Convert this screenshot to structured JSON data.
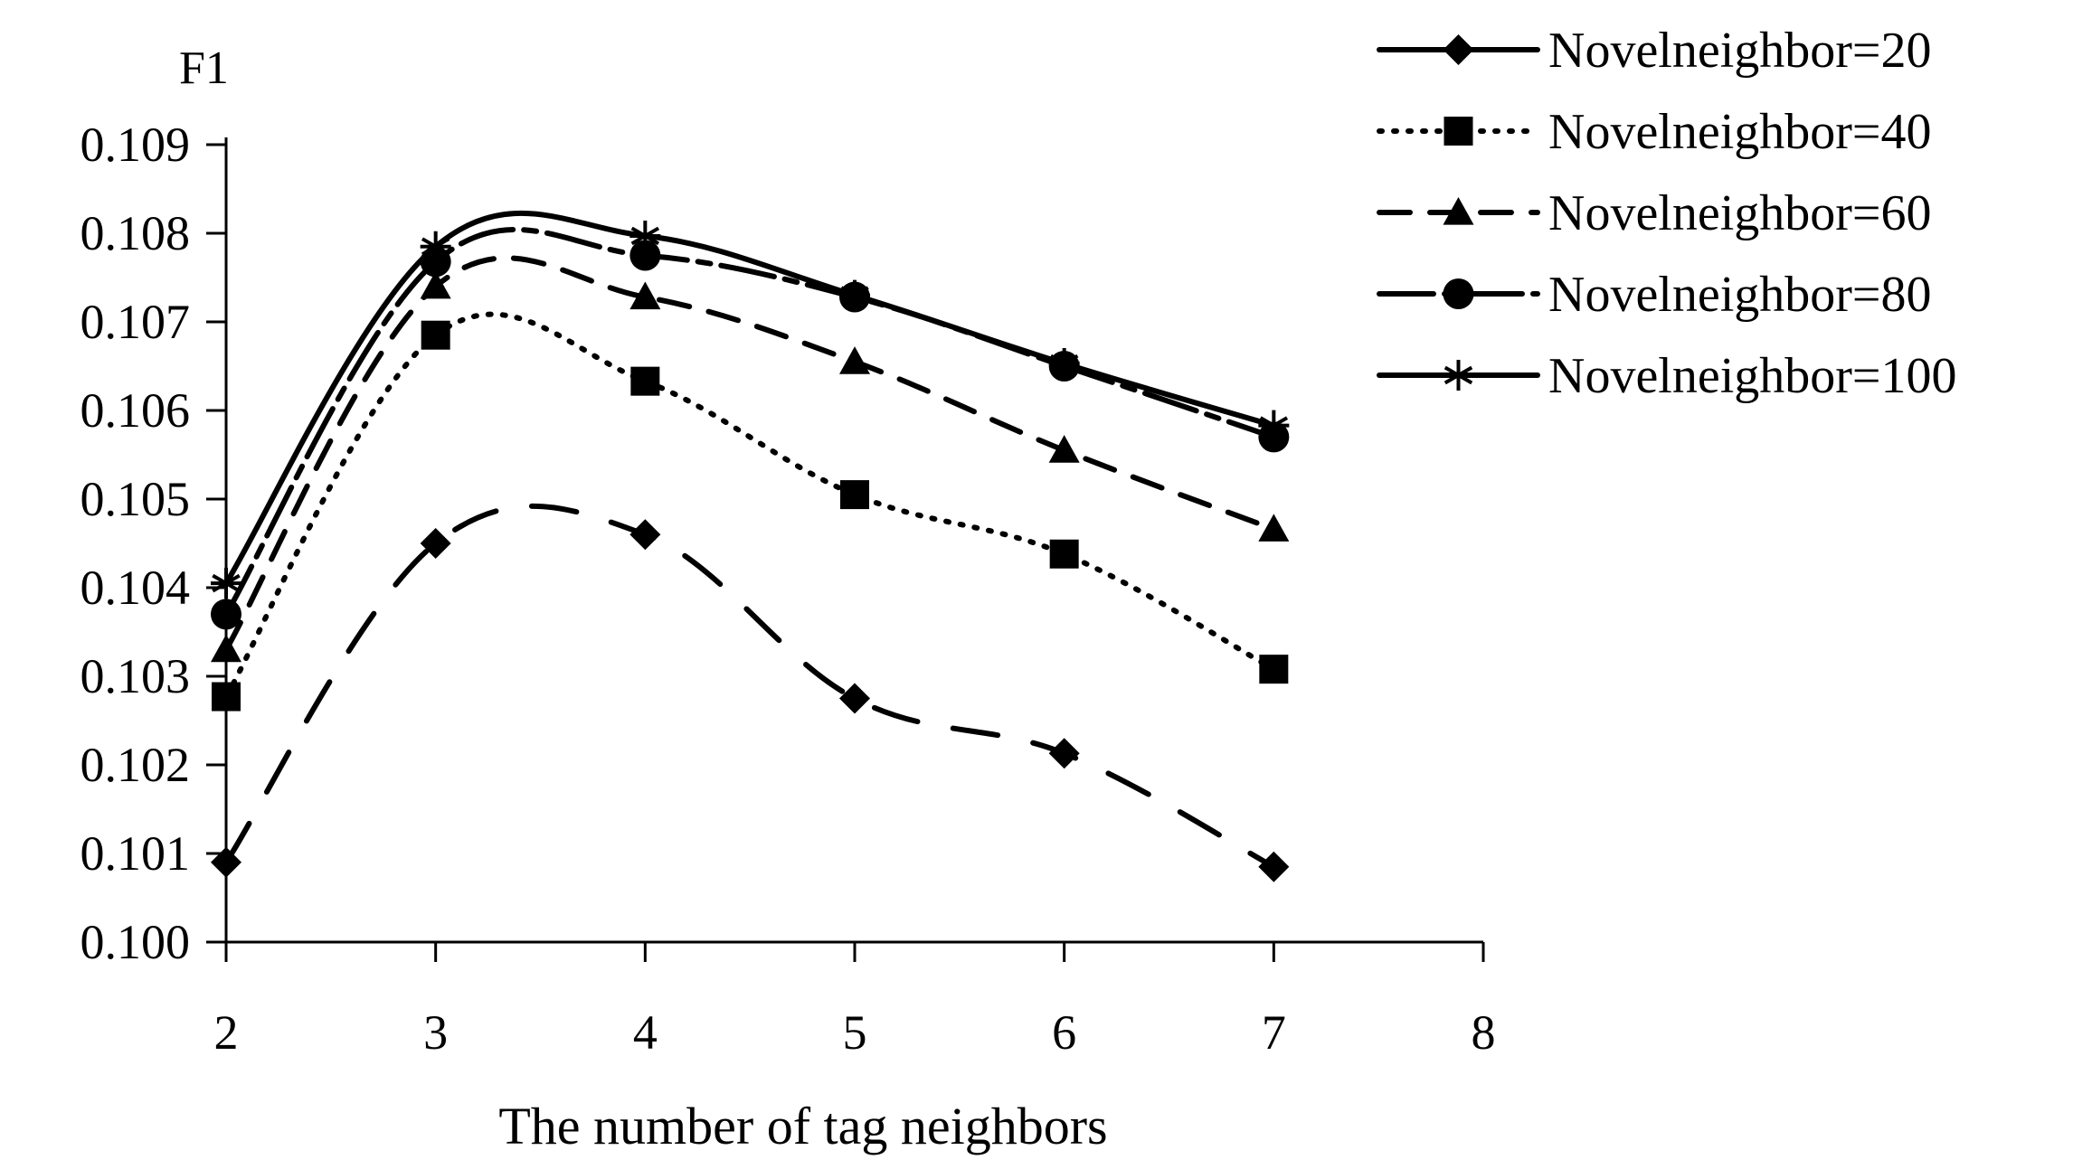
{
  "chart_data": {
    "type": "line",
    "title": "",
    "ylabel": "F1",
    "xlabel": "The number of tag neighbors",
    "xlim": [
      2,
      8
    ],
    "ylim": [
      0.1,
      0.109
    ],
    "x_ticks": [
      "2",
      "3",
      "4",
      "5",
      "6",
      "7",
      "8"
    ],
    "y_ticks": [
      "0.100",
      "0.101",
      "0.102",
      "0.103",
      "0.104",
      "0.105",
      "0.106",
      "0.107",
      "0.108",
      "0.109"
    ],
    "grid": false,
    "legend_position": "top-right",
    "x": [
      2,
      3,
      4,
      5,
      6,
      7
    ],
    "series": [
      {
        "name": "Novelneighbor=20",
        "marker": "diamond",
        "line_style": "long-dash",
        "values": [
          0.1009,
          0.1045,
          0.1046,
          0.10275,
          0.10213,
          0.10085
        ]
      },
      {
        "name": "Novelneighbor=40",
        "marker": "square",
        "line_style": "dotted",
        "values": [
          0.10277,
          0.10685,
          0.10633,
          0.10505,
          0.10438,
          0.10308
        ]
      },
      {
        "name": "Novelneighbor=60",
        "marker": "triangle",
        "line_style": "dashed",
        "values": [
          0.1033,
          0.1074,
          0.10728,
          0.10655,
          0.10555,
          0.10466
        ]
      },
      {
        "name": "Novelneighbor=80",
        "marker": "circle",
        "line_style": "dash-dot",
        "values": [
          0.1037,
          0.10768,
          0.10775,
          0.10728,
          0.1065,
          0.1057
        ]
      },
      {
        "name": "Novelneighbor=100",
        "marker": "asterisk",
        "line_style": "solid",
        "values": [
          0.10405,
          0.10785,
          0.10797,
          0.1073,
          0.10653,
          0.10583
        ]
      }
    ]
  }
}
